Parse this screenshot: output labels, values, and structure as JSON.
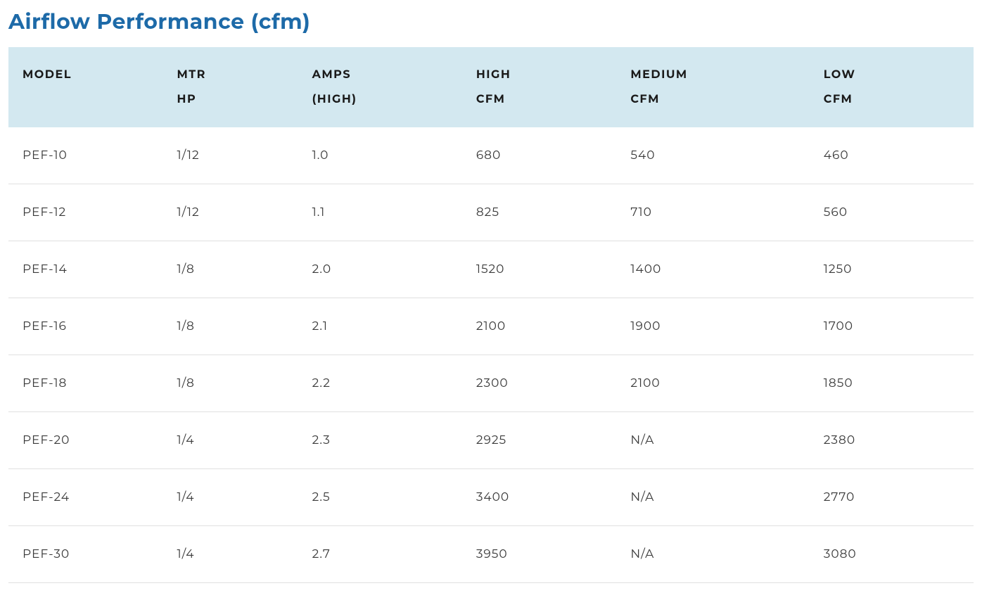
{
  "title": "Airflow Performance (cfm)",
  "table": {
    "columns": [
      {
        "line1": "MODEL",
        "line2": ""
      },
      {
        "line1": "MTR",
        "line2": "HP"
      },
      {
        "line1": "AMPS",
        "line2": "(HIGH)"
      },
      {
        "line1": "HIGH",
        "line2": "CFM"
      },
      {
        "line1": "MEDIUM",
        "line2": "CFM"
      },
      {
        "line1": "LOW",
        "line2": "CFM"
      }
    ],
    "rows": [
      [
        "PEF-10",
        "1/12",
        "1.0",
        "680",
        "540",
        "460"
      ],
      [
        "PEF-12",
        "1/12",
        "1.1",
        "825",
        "710",
        "560"
      ],
      [
        "PEF-14",
        "1/8",
        "2.0",
        "1520",
        "1400",
        "1250"
      ],
      [
        "PEF-16",
        "1/8",
        "2.1",
        "2100",
        "1900",
        "1700"
      ],
      [
        "PEF-18",
        "1/8",
        "2.2",
        "2300",
        "2100",
        "1850"
      ],
      [
        "PEF-20",
        "1/4",
        "2.3",
        "2925",
        "N/A",
        "2380"
      ],
      [
        "PEF-24",
        "1/4",
        "2.5",
        "3400",
        "N/A",
        "2770"
      ],
      [
        "PEF-30",
        "1/4",
        "2.7",
        "3950",
        "N/A",
        "3080"
      ]
    ]
  },
  "styling": {
    "title_color": "#1d6aa8",
    "title_fontsize": 30,
    "header_bg": "#d3e8f0",
    "header_text_color": "#1a1a1a",
    "header_fontsize": 16,
    "cell_text_color": "#3a3a3a",
    "cell_fontsize": 17,
    "border_color": "#e0e0e0",
    "background_color": "#ffffff",
    "column_widths_pct": [
      16,
      14,
      17,
      16,
      20,
      17
    ]
  }
}
